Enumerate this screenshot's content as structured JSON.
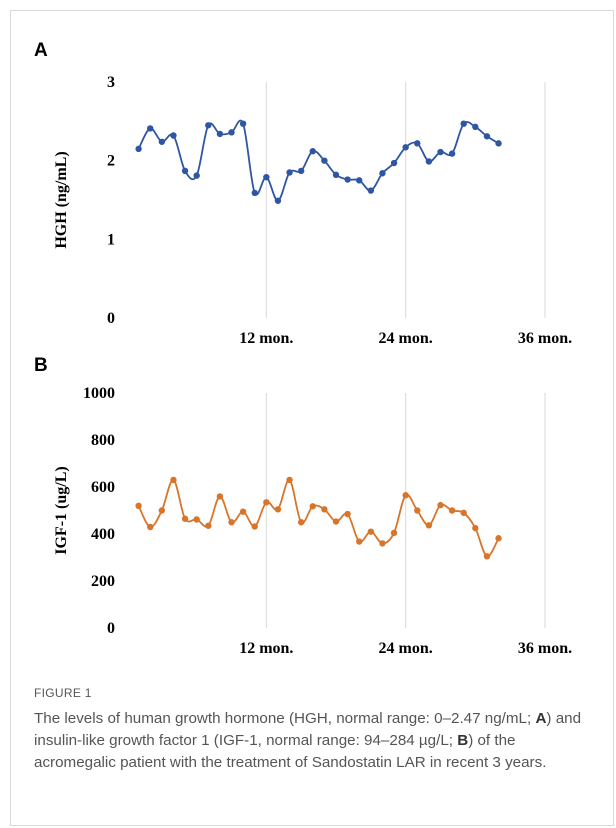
{
  "panels": [
    {
      "letter": "A"
    },
    {
      "letter": "B"
    }
  ],
  "chart_data": [
    {
      "type": "line",
      "panel": "A",
      "title": "",
      "xlabel": "",
      "ylabel": "HGH (ng/mL)",
      "ylim": [
        0,
        3
      ],
      "yticks": [
        "0",
        "1",
        "2",
        "3"
      ],
      "xlim": [
        0,
        36
      ],
      "xticks": [
        {
          "value": 12,
          "label": "12 mon."
        },
        {
          "value": 24,
          "label": "24 mon."
        },
        {
          "value": 36,
          "label": "36 mon."
        }
      ],
      "grid": "vertical",
      "series_color": "#2E56A3",
      "series": [
        {
          "x": [
            1,
            2,
            3,
            4,
            5,
            6,
            7,
            8,
            9,
            10,
            11,
            12,
            13,
            14,
            15,
            16,
            17,
            18,
            19,
            20,
            21,
            22,
            23,
            24,
            25,
            26,
            27,
            28,
            29,
            30,
            31,
            32
          ],
          "values": [
            2.15,
            2.41,
            2.24,
            2.32,
            1.87,
            1.81,
            2.45,
            2.34,
            2.36,
            2.47,
            1.59,
            1.79,
            1.49,
            1.85,
            1.87,
            2.12,
            2.0,
            1.82,
            1.76,
            1.75,
            1.62,
            1.84,
            1.97,
            2.17,
            2.22,
            1.99,
            2.11,
            2.09,
            2.47,
            2.43,
            2.31,
            2.22
          ]
        }
      ]
    },
    {
      "type": "line",
      "panel": "B",
      "title": "",
      "xlabel": "",
      "ylabel": "IGF-1 (ug/L)",
      "ylim": [
        0,
        1000
      ],
      "yticks": [
        "0",
        "200",
        "400",
        "600",
        "800",
        "1000"
      ],
      "xlim": [
        0,
        36
      ],
      "xticks": [
        {
          "value": 12,
          "label": "12 mon."
        },
        {
          "value": 24,
          "label": "24 mon."
        },
        {
          "value": 36,
          "label": "36 mon."
        }
      ],
      "grid": "vertical",
      "series_color": "#D9752B",
      "series": [
        {
          "x": [
            1,
            2,
            3,
            4,
            5,
            6,
            7,
            8,
            9,
            10,
            11,
            12,
            13,
            14,
            15,
            16,
            17,
            18,
            19,
            20,
            21,
            22,
            23,
            24,
            25,
            26,
            27,
            28,
            29,
            30,
            31,
            32
          ],
          "values": [
            520,
            430,
            500,
            630,
            465,
            462,
            435,
            560,
            450,
            495,
            432,
            535,
            505,
            630,
            450,
            518,
            505,
            453,
            485,
            368,
            410,
            360,
            405,
            565,
            500,
            437,
            523,
            500,
            490,
            425,
            305,
            382
          ]
        }
      ]
    }
  ],
  "figure_label": "FIGURE 1",
  "caption": {
    "part1": "The levels of human growth hormone (HGH, normal range: 0–2.47 ng/mL; ",
    "ref_a": "A",
    "part2": ") and insulin-like growth factor 1 (IGF-1, normal range: 94–284 µg/L; ",
    "ref_b": "B",
    "part3": ") of the acromegalic patient with the treatment of Sandostatin LAR in recent 3 years."
  }
}
